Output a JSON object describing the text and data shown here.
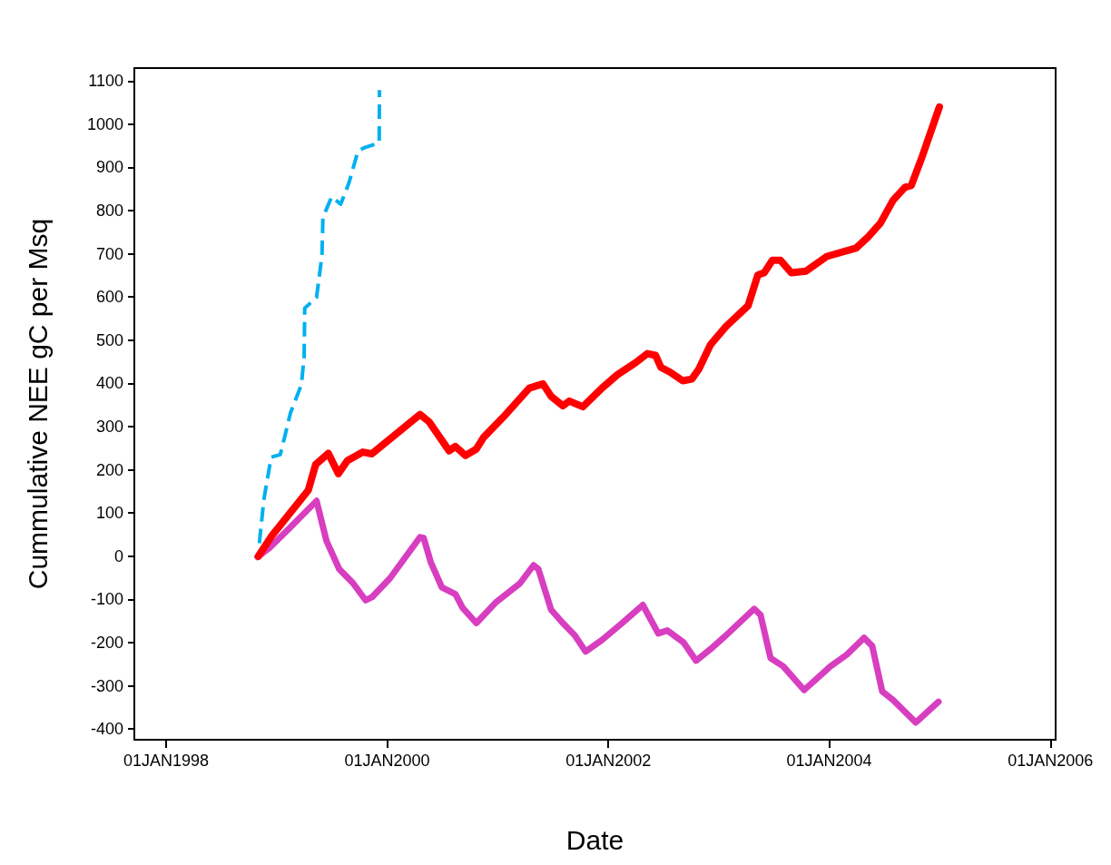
{
  "chart_data": {
    "type": "line",
    "xlabel": "Date",
    "ylabel": "Cummulative NEE gC per Msq",
    "xlim": [
      "1997-09-18",
      "2006-01-18"
    ],
    "xticks": [
      {
        "value": "1998-01-01",
        "label": "01JAN1998"
      },
      {
        "value": "2000-01-01",
        "label": "01JAN2000"
      },
      {
        "value": "2002-01-01",
        "label": "01JAN2002"
      },
      {
        "value": "2004-01-01",
        "label": "01JAN2004"
      },
      {
        "value": "2006-01-01",
        "label": "01JAN2006"
      }
    ],
    "ylim": [
      -425,
      1130
    ],
    "yticks": [
      -400,
      -300,
      -200,
      -100,
      0,
      100,
      200,
      300,
      400,
      500,
      600,
      700,
      800,
      900,
      1000,
      1100
    ],
    "grid": false,
    "marker": "none",
    "series": [
      {
        "color": "#ff0000",
        "line_style": "solid",
        "x": [
          "1998-11-02",
          "1998-12-17",
          "1999-04-16",
          "1999-05-10",
          "1999-06-21",
          "1999-07-24",
          "1999-08-23",
          "1999-10-13",
          "1999-11-12",
          "2000-04-19",
          "2000-05-19",
          "2000-07-24",
          "2000-08-14",
          "2000-09-16",
          "2000-10-22",
          "2000-11-15",
          "2001-01-27",
          "2001-04-15",
          "2001-05-30",
          "2001-06-26",
          "2001-08-04",
          "2001-08-25",
          "2001-10-09",
          "2001-12-11",
          "2002-01-31",
          "2002-04-01",
          "2002-05-10",
          "2002-06-06",
          "2002-06-24",
          "2002-07-24",
          "2002-09-04",
          "2002-10-04",
          "2002-10-27",
          "2002-12-05",
          "2003-01-25",
          "2003-04-08",
          "2003-05-10",
          "2003-05-31",
          "2003-06-27",
          "2003-07-24",
          "2003-08-29",
          "2003-10-16",
          "2003-12-24",
          "2004-03-29",
          "2004-05-07",
          "2004-06-18",
          "2004-07-30",
          "2004-09-07",
          "2004-09-28",
          "2004-11-03",
          "2004-12-30"
        ],
        "values": [
          0,
          48,
          153,
          212,
          238,
          191,
          221,
          241,
          237,
          328,
          311,
          244,
          254,
          233,
          248,
          275,
          328,
          389,
          399,
          370,
          348,
          359,
          346,
          389,
          420,
          448,
          469,
          465,
          437,
          426,
          406,
          410,
          433,
          490,
          532,
          580,
          651,
          656,
          685,
          685,
          656,
          660,
          694,
          713,
          738,
          771,
          824,
          854,
          858,
          925,
          1040
        ]
      },
      {
        "color": "#d83ec0",
        "line_style": "solid",
        "x": [
          "1998-10-30",
          "1998-12-08",
          "1999-02-16",
          "1999-05-13",
          "1999-06-15",
          "1999-07-27",
          "1999-09-10",
          "1999-10-22",
          "1999-11-12",
          "2000-01-11",
          "2000-04-19",
          "2000-05-01",
          "2000-05-25",
          "2000-06-30",
          "2000-08-14",
          "2000-09-07",
          "2000-10-22",
          "2000-12-27",
          "2001-03-15",
          "2001-04-29",
          "2001-05-15",
          "2001-06-26",
          "2001-08-04",
          "2001-09-12",
          "2001-10-18",
          "2001-12-11",
          "2002-02-09",
          "2002-04-25",
          "2002-06-15",
          "2002-07-15",
          "2002-09-07",
          "2002-10-18",
          "2002-12-05",
          "2003-01-16",
          "2003-03-24",
          "2003-04-28",
          "2003-05-19",
          "2003-06-21",
          "2003-08-02",
          "2003-10-10",
          "2004-01-05",
          "2004-02-28",
          "2004-04-25",
          "2004-05-22",
          "2004-06-24",
          "2004-07-30",
          "2004-10-13",
          "2004-12-27"
        ],
        "values": [
          -2,
          19,
          67,
          128,
          35,
          -30,
          -62,
          -102,
          -95,
          -51,
          44,
          42,
          -15,
          -72,
          -88,
          -120,
          -155,
          -106,
          -63,
          -21,
          -30,
          -124,
          -155,
          -183,
          -221,
          -194,
          -159,
          -113,
          -179,
          -172,
          -200,
          -242,
          -215,
          -189,
          -145,
          -122,
          -136,
          -236,
          -255,
          -310,
          -255,
          -228,
          -189,
          -208,
          -313,
          -333,
          -385,
          -337
        ]
      },
      {
        "color": "#00b0f0",
        "line_style": "dashed",
        "x": [
          "1998-11-05",
          "1998-11-20",
          "1998-12-14",
          "1999-01-13",
          "1999-01-28",
          "1999-02-16",
          "1999-03-24",
          "1999-04-02",
          "1999-04-04",
          "1999-05-13",
          "1999-05-31",
          "1999-06-03",
          "1999-07-02",
          "1999-08-01",
          "1999-08-28",
          "1999-09-27",
          "1999-10-19",
          "1999-12-06",
          "1999-12-07"
        ],
        "values": [
          30,
          131,
          229,
          235,
          277,
          332,
          397,
          462,
          574,
          599,
          696,
          784,
          832,
          815,
          864,
          938,
          946,
          957,
          1079
        ]
      }
    ]
  }
}
